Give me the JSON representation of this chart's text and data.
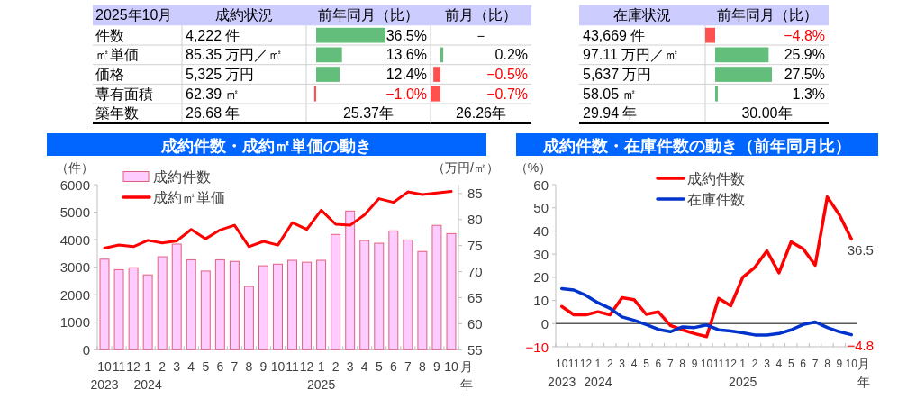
{
  "chart_data": [
    {
      "type": "bar",
      "orientation": "horizontal",
      "title": "2025年10月",
      "categories": [
        "件数",
        "㎡単価",
        "価格",
        "専有面積",
        "築年数"
      ],
      "series": [
        {
          "name": "成約状況",
          "values": [
            null,
            null,
            null,
            null,
            null
          ],
          "value_labels": [
            "4,222 件",
            "85.35 万円／㎡",
            "5,325 万円",
            "62.39 ㎡",
            "26.68 年"
          ]
        },
        {
          "name": "前年同月（比）",
          "values": [
            36.5,
            13.6,
            12.4,
            -1.0,
            null
          ],
          "value_labels": [
            "36.5%",
            "13.6%",
            "12.4%",
            "−1.0%",
            "25.37年"
          ],
          "colors": [
            "#63be7b",
            "#63be7b",
            "#63be7b",
            "#ff5050",
            null
          ]
        }
      ]
    },
    {
      "type": "bar",
      "orientation": "horizontal",
      "categories": [
        null,
        null,
        null,
        null,
        null
      ],
      "series": [
        {
          "name": "前月（比）",
          "values": [
            null,
            0.2,
            -0.5,
            -0.7,
            null
          ],
          "value_labels": [
            "－",
            "0.2%",
            "−0.5%",
            "−0.7%",
            "26.26年"
          ],
          "colors": [
            null,
            "#63be7b",
            "#ff5050",
            "#ff5050",
            null
          ]
        }
      ]
    },
    {
      "type": "bar",
      "orientation": "horizontal",
      "categories": [
        null,
        null,
        null,
        null,
        null
      ],
      "series": [
        {
          "name": "在庫状況",
          "values": [
            null,
            null,
            null,
            null,
            null
          ],
          "value_labels": [
            "43,669 件",
            "97.11 万円／㎡",
            "5,637 万円",
            "58.05 ㎡",
            "29.94 年"
          ]
        },
        {
          "name": "前年同月（比）",
          "values": [
            -4.8,
            25.9,
            27.5,
            1.3,
            null
          ],
          "value_labels": [
            "−4.8%",
            "25.9%",
            "27.5%",
            "1.3%",
            "30.00年"
          ],
          "colors": [
            "#ff5050",
            "#63be7b",
            "#63be7b",
            "#63be7b",
            null
          ]
        }
      ]
    },
    {
      "type": "bar",
      "title": "成約件数・成約㎡単価の動き",
      "ylabel": "（件）",
      "y2label": "（万円/㎡）",
      "xlabel": "月年",
      "categories": [
        "10\n2023",
        "11",
        "12",
        "1\n2024",
        "2",
        "3",
        "4",
        "5",
        "6",
        "7",
        "8",
        "9",
        "10",
        "11",
        "12",
        "1\n2025",
        "2",
        "3",
        "4",
        "5",
        "6",
        "7",
        "8",
        "9",
        "10"
      ],
      "series": [
        {
          "name": "成約件数",
          "type": "bar",
          "color": "#ffccff",
          "values": [
            3290,
            2910,
            2980,
            2720,
            3380,
            3840,
            3270,
            2860,
            3270,
            3210,
            2300,
            3050,
            3110,
            3250,
            3180,
            3250,
            4190,
            5040,
            3970,
            3870,
            4320,
            3990,
            3570,
            4520,
            4220
          ]
        },
        {
          "name": "成約㎡単価",
          "type": "line",
          "axis": "y2",
          "color": "#ff0000",
          "values": [
            74.5,
            75.1,
            74.8,
            76.0,
            75.5,
            75.9,
            78.1,
            76.3,
            78.0,
            78.9,
            74.8,
            75.8,
            75.1,
            79.4,
            78.1,
            81.8,
            79.1,
            78.9,
            80.9,
            84.0,
            83.3,
            85.3,
            84.8,
            85.1,
            85.4
          ]
        }
      ],
      "ylim": [
        0,
        6000
      ],
      "yticks": [
        0,
        1000,
        2000,
        3000,
        4000,
        5000,
        6000
      ],
      "y2lim": [
        55,
        86.7
      ],
      "y2ticks": [
        55,
        60,
        65,
        70,
        75,
        80,
        85
      ],
      "legend": "top left"
    },
    {
      "type": "line",
      "title": "成約件数・在庫件数の動き（前年同月比）",
      "ylabel": "（%）",
      "xlabel": "月年",
      "categories": [
        "10\n2023",
        "11",
        "12",
        "1\n2024",
        "2",
        "3",
        "4",
        "5",
        "6",
        "7",
        "8",
        "9",
        "10",
        "11",
        "12",
        "1\n2025",
        "2",
        "3",
        "4",
        "5",
        "6",
        "7",
        "8",
        "9",
        "10"
      ],
      "series": [
        {
          "name": "成約件数",
          "color": "#ff0000",
          "values": [
            7.4,
            3.8,
            3.8,
            5.1,
            3.8,
            11.2,
            10.3,
            4.0,
            5.1,
            -0.8,
            -2.7,
            -4.3,
            -5.6,
            10.9,
            7.7,
            20.0,
            24.3,
            31.4,
            21.9,
            35.3,
            32.3,
            25.2,
            54.7,
            47.0,
            36.5
          ],
          "value_labels": [
            null,
            null,
            null,
            null,
            null,
            null,
            null,
            null,
            null,
            null,
            null,
            null,
            null,
            null,
            null,
            null,
            null,
            null,
            null,
            null,
            null,
            null,
            null,
            null,
            "36.5"
          ]
        },
        {
          "name": "在庫件数",
          "color": "#0033cc",
          "values": [
            15.1,
            14.5,
            12.2,
            9.0,
            6.6,
            2.9,
            1.4,
            -0.4,
            -2.5,
            -3.5,
            -1.4,
            -1.7,
            -0.6,
            -2.7,
            -3.2,
            -4.0,
            -4.9,
            -4.9,
            -4.3,
            -2.7,
            -0.4,
            0.7,
            -1.7,
            -3.5,
            -4.8
          ],
          "value_labels": [
            null,
            null,
            null,
            null,
            null,
            null,
            null,
            null,
            null,
            null,
            null,
            null,
            null,
            null,
            null,
            null,
            null,
            null,
            null,
            null,
            null,
            null,
            null,
            null,
            "−4.8"
          ]
        }
      ],
      "ylim": [
        -10,
        60
      ],
      "yticks": [
        {
          "value": -10,
          "label": "−10"
        },
        0,
        10,
        20,
        30,
        40,
        50,
        60
      ],
      "ref_lines": [
        {
          "axis": "y",
          "value": 0,
          "color": "#595959"
        }
      ],
      "legend": "top"
    }
  ]
}
